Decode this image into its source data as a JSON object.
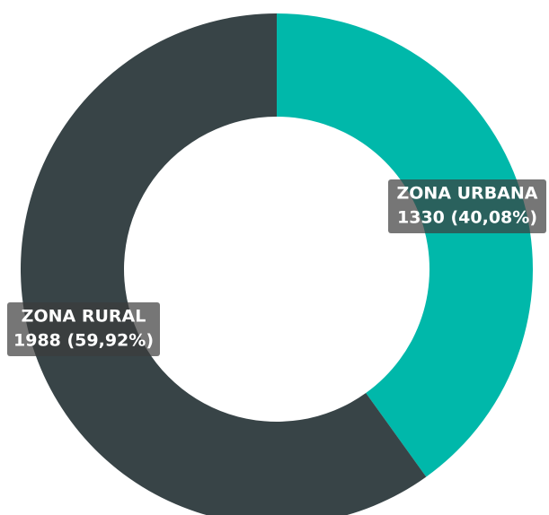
{
  "chart_data": {
    "type": "donut",
    "categories": [
      "ZONA URBANA",
      "ZONA RURAL"
    ],
    "values": [
      1330,
      1988
    ],
    "value_labels": [
      "1330 (40,08%)",
      "1988 (59,92%)"
    ],
    "colors": [
      "#00b8aa",
      "#384447"
    ]
  }
}
